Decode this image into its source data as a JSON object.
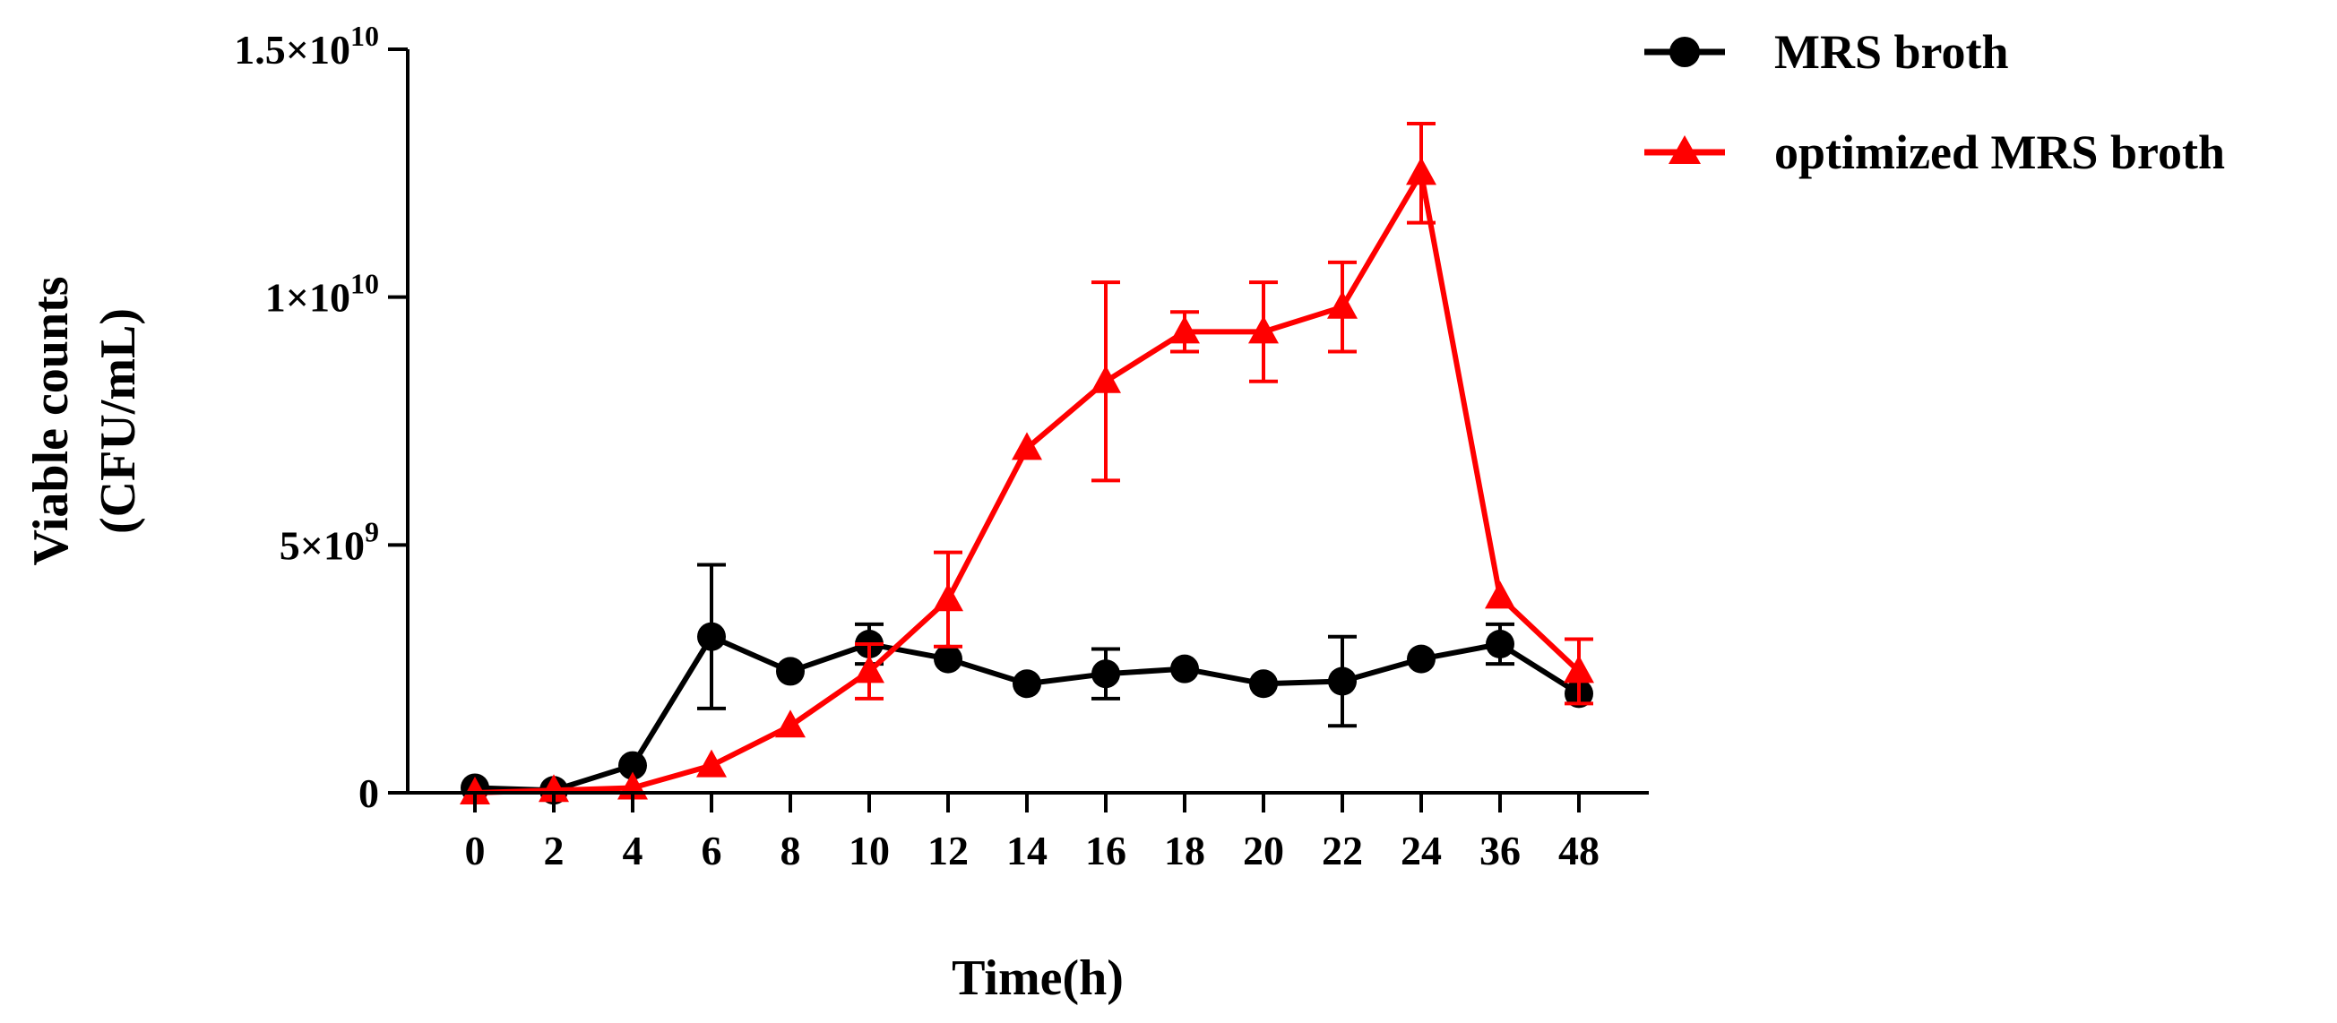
{
  "chart_data": {
    "type": "line",
    "title": "",
    "xlabel": "Time(h)",
    "ylabel_lines": [
      "Viable counts",
      "(CFU/mL)"
    ],
    "categories": [
      "0",
      "2",
      "4",
      "6",
      "8",
      "10",
      "12",
      "14",
      "16",
      "18",
      "20",
      "22",
      "24",
      "36",
      "48"
    ],
    "ylim": [
      0,
      15000000000
    ],
    "yticks": [
      {
        "value": 0,
        "label": "0"
      },
      {
        "value": 5000000000,
        "label": "5×10",
        "exp": "9"
      },
      {
        "value": 10000000000,
        "label": "1×10",
        "exp": "10"
      },
      {
        "value": 15000000000,
        "label": "1.5×10",
        "exp": "10"
      }
    ],
    "grid": false,
    "legend_position": "top-right",
    "series": [
      {
        "name": "MRS broth",
        "color": "#000000",
        "marker": "circle",
        "values": [
          100000000,
          50000000,
          550000000,
          3150000000,
          2450000000,
          3000000000,
          2700000000,
          2200000000,
          2400000000,
          2500000000,
          2200000000,
          2250000000,
          2700000000,
          3000000000,
          2000000000
        ],
        "errors": [
          0,
          0,
          0,
          1450000000,
          0,
          400000000,
          0,
          0,
          500000000,
          0,
          0,
          900000000,
          0,
          400000000,
          0
        ]
      },
      {
        "name": "optimized MRS broth",
        "color": "#ff0000",
        "marker": "triangle",
        "values": [
          0,
          50000000,
          100000000,
          550000000,
          1350000000,
          2450000000,
          3900000000,
          6950000000,
          8300000000,
          9300000000,
          9300000000,
          9800000000,
          12500000000,
          3950000000,
          2450000000
        ],
        "errors": [
          0,
          0,
          0,
          0,
          0,
          550000000,
          950000000,
          0,
          2000000000,
          400000000,
          1000000000,
          900000000,
          1000000000,
          0,
          650000000
        ]
      }
    ]
  }
}
